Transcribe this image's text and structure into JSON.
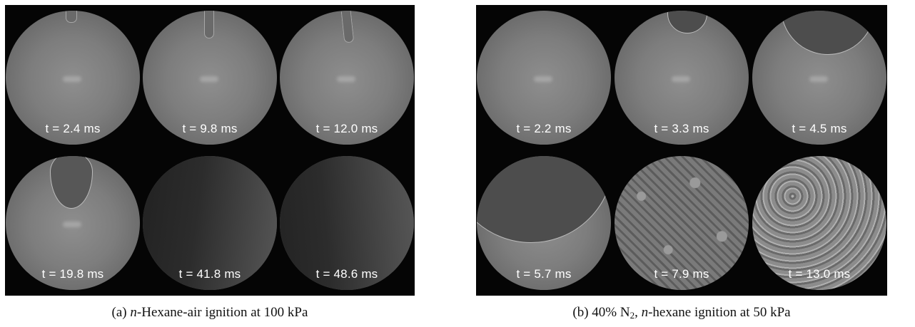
{
  "panel_a": {
    "frames": [
      {
        "time_label": "t = 2.4 ms"
      },
      {
        "time_label": "t = 9.8 ms"
      },
      {
        "time_label": "t = 12.0 ms"
      },
      {
        "time_label": "t = 19.8 ms"
      },
      {
        "time_label": "t = 41.8 ms"
      },
      {
        "time_label": "t = 48.6 ms"
      }
    ],
    "caption": {
      "prefix": "(a) ",
      "italic": "n",
      "rest": "-Hexane-air ignition at 100 kPa"
    }
  },
  "panel_b": {
    "frames": [
      {
        "time_label": "t = 2.2 ms"
      },
      {
        "time_label": "t = 3.3 ms"
      },
      {
        "time_label": "t = 4.5 ms"
      },
      {
        "time_label": "t = 5.7 ms"
      },
      {
        "time_label": "t = 7.9 ms"
      },
      {
        "time_label": "t = 13.0 ms"
      }
    ],
    "caption": {
      "prefix": "(b) 40% N",
      "subscript": "2",
      "middle": ", ",
      "italic": "n",
      "rest": "-hexane ignition at 50 kPa"
    }
  }
}
